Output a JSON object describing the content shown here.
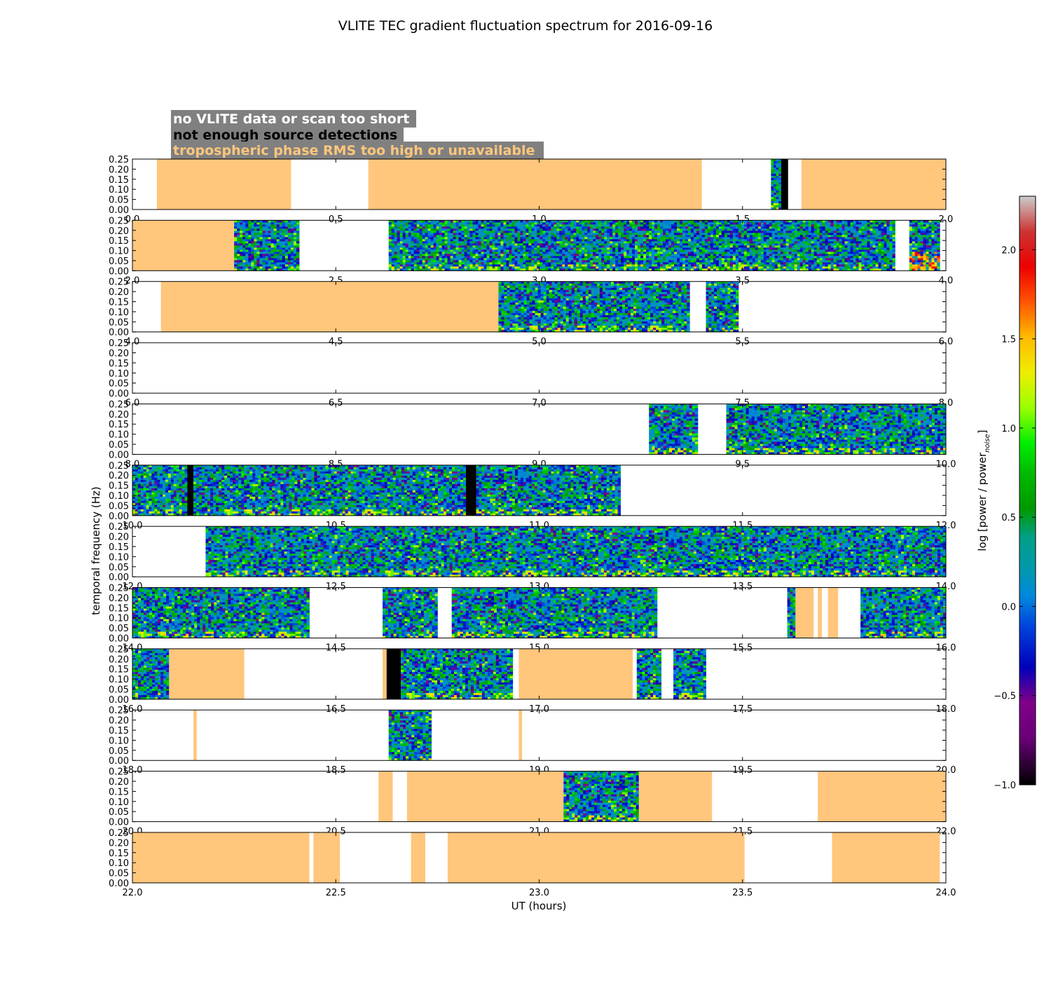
{
  "chart_data": {
    "type": "heatmap",
    "title": "VLITE TEC gradient fluctuation spectrum for 2016-09-16",
    "xlabel": "UT (hours)",
    "ylabel": "temporal frequency (Hz)",
    "ylim": [
      0.0,
      0.25
    ],
    "y_ticks": [
      "0.00",
      "0.05",
      "0.10",
      "0.15",
      "0.20",
      "0.25"
    ],
    "colorbar": {
      "label_main": "log [power / power",
      "label_sub": "noise",
      "label_close": "]",
      "range": [
        -1.0,
        2.3
      ],
      "ticks": [
        "-1.0",
        "-0.5",
        "0.0",
        "0.5",
        "1.0",
        "1.5",
        "2.0"
      ],
      "colormap": "nipy_spectral"
    },
    "legend": [
      {
        "label": "no VLITE data or scan too short",
        "color": "#ffffff",
        "background": "#808080"
      },
      {
        "label": "not enough source detections",
        "color": "#000000",
        "background": "#808080"
      },
      {
        "label": "tropospheric phase RMS too high or unavailable",
        "color": "#ffc67c",
        "background": "#808080"
      }
    ],
    "category_colors": {
      "no_data": "#ffffff",
      "no_detections": "#000000",
      "tropo_rms": "#ffc67c"
    },
    "panels": [
      {
        "range": [
          0.0,
          2.0
        ],
        "ticks": [
          "0.0",
          "0.5",
          "1.0",
          "1.5",
          "2.0"
        ],
        "segments": [
          {
            "t0": 0.06,
            "t1": 0.39,
            "kind": "tropo"
          },
          {
            "t0": 0.58,
            "t1": 1.4,
            "kind": "tropo"
          },
          {
            "t0": 1.57,
            "t1": 1.595,
            "kind": "data"
          },
          {
            "t0": 1.595,
            "t1": 1.612,
            "kind": "black"
          },
          {
            "t0": 1.645,
            "t1": 2.0,
            "kind": "tropo"
          }
        ]
      },
      {
        "range": [
          2.0,
          4.0
        ],
        "ticks": [
          "2.0",
          "2.5",
          "3.0",
          "3.5",
          "4.0"
        ],
        "segments": [
          {
            "t0": 2.0,
            "t1": 2.25,
            "kind": "tropo"
          },
          {
            "t0": 2.25,
            "t1": 2.41,
            "kind": "data"
          },
          {
            "t0": 2.63,
            "t1": 3.875,
            "kind": "data"
          },
          {
            "t0": 3.91,
            "t1": 3.985,
            "kind": "data",
            "hot": true
          }
        ]
      },
      {
        "range": [
          4.0,
          6.0
        ],
        "ticks": [
          "4.0",
          "4.5",
          "5.0",
          "5.5",
          "6.0"
        ],
        "segments": [
          {
            "t0": 4.07,
            "t1": 4.9,
            "kind": "tropo"
          },
          {
            "t0": 4.9,
            "t1": 5.37,
            "kind": "data"
          },
          {
            "t0": 5.41,
            "t1": 5.49,
            "kind": "data"
          }
        ]
      },
      {
        "range": [
          6.0,
          8.0
        ],
        "ticks": [
          "6.0",
          "6.5",
          "7.0",
          "7.5",
          "8.0"
        ],
        "segments": []
      },
      {
        "range": [
          8.0,
          10.0
        ],
        "ticks": [
          "8.0",
          "8.5",
          "9.0",
          "9.5",
          "10.0"
        ],
        "segments": [
          {
            "t0": 9.27,
            "t1": 9.39,
            "kind": "data"
          },
          {
            "t0": 9.46,
            "t1": 10.0,
            "kind": "data"
          }
        ]
      },
      {
        "range": [
          10.0,
          12.0
        ],
        "ticks": [
          "10.0",
          "10.5",
          "11.0",
          "11.5",
          "12.0"
        ],
        "segments": [
          {
            "t0": 10.0,
            "t1": 10.135,
            "kind": "data"
          },
          {
            "t0": 10.135,
            "t1": 10.15,
            "kind": "black"
          },
          {
            "t0": 10.15,
            "t1": 10.82,
            "kind": "data"
          },
          {
            "t0": 10.82,
            "t1": 10.845,
            "kind": "black"
          },
          {
            "t0": 10.845,
            "t1": 11.2,
            "kind": "data"
          }
        ]
      },
      {
        "range": [
          12.0,
          14.0
        ],
        "ticks": [
          "12.0",
          "12.5",
          "13.0",
          "13.5",
          "14.0"
        ],
        "segments": [
          {
            "t0": 12.18,
            "t1": 14.0,
            "kind": "data"
          }
        ]
      },
      {
        "range": [
          14.0,
          16.0
        ],
        "ticks": [
          "14.0",
          "14.5",
          "15.0",
          "15.5",
          "16.0"
        ],
        "segments": [
          {
            "t0": 14.0,
            "t1": 14.435,
            "kind": "data"
          },
          {
            "t0": 14.615,
            "t1": 14.75,
            "kind": "data"
          },
          {
            "t0": 14.785,
            "t1": 15.29,
            "kind": "data"
          },
          {
            "t0": 15.61,
            "t1": 15.63,
            "kind": "data"
          },
          {
            "t0": 15.63,
            "t1": 15.675,
            "kind": "tropo"
          },
          {
            "t0": 15.685,
            "t1": 15.695,
            "kind": "tropo"
          },
          {
            "t0": 15.71,
            "t1": 15.735,
            "kind": "tropo"
          },
          {
            "t0": 15.79,
            "t1": 16.0,
            "kind": "data"
          }
        ]
      },
      {
        "range": [
          16.0,
          18.0
        ],
        "ticks": [
          "16.0",
          "16.5",
          "17.0",
          "17.5",
          "18.0"
        ],
        "segments": [
          {
            "t0": 16.0,
            "t1": 16.09,
            "kind": "data"
          },
          {
            "t0": 16.09,
            "t1": 16.275,
            "kind": "tropo"
          },
          {
            "t0": 16.615,
            "t1": 16.625,
            "kind": "tropo"
          },
          {
            "t0": 16.625,
            "t1": 16.66,
            "kind": "black"
          },
          {
            "t0": 16.66,
            "t1": 16.935,
            "kind": "data"
          },
          {
            "t0": 16.95,
            "t1": 17.23,
            "kind": "tropo"
          },
          {
            "t0": 17.24,
            "t1": 17.3,
            "kind": "data"
          },
          {
            "t0": 17.33,
            "t1": 17.41,
            "kind": "data"
          }
        ]
      },
      {
        "range": [
          18.0,
          20.0
        ],
        "ticks": [
          "18.0",
          "18.5",
          "19.0",
          "19.5",
          "20.0"
        ],
        "segments": [
          {
            "t0": 18.15,
            "t1": 18.158,
            "kind": "tropo"
          },
          {
            "t0": 18.63,
            "t1": 18.735,
            "kind": "data"
          },
          {
            "t0": 18.95,
            "t1": 18.958,
            "kind": "tropo"
          }
        ]
      },
      {
        "range": [
          20.0,
          22.0
        ],
        "ticks": [
          "20.0",
          "20.5",
          "21.0",
          "21.5",
          "22.0"
        ],
        "segments": [
          {
            "t0": 20.605,
            "t1": 20.64,
            "kind": "tropo"
          },
          {
            "t0": 20.675,
            "t1": 21.06,
            "kind": "tropo"
          },
          {
            "t0": 21.06,
            "t1": 21.245,
            "kind": "data"
          },
          {
            "t0": 21.245,
            "t1": 21.425,
            "kind": "tropo"
          },
          {
            "t0": 21.685,
            "t1": 22.0,
            "kind": "tropo"
          }
        ]
      },
      {
        "range": [
          22.0,
          24.0
        ],
        "ticks": [
          "22.0",
          "22.5",
          "23.0",
          "23.5",
          "24.0"
        ],
        "segments": [
          {
            "t0": 22.0,
            "t1": 22.435,
            "kind": "tropo"
          },
          {
            "t0": 22.445,
            "t1": 22.51,
            "kind": "tropo"
          },
          {
            "t0": 22.685,
            "t1": 22.72,
            "kind": "tropo"
          },
          {
            "t0": 22.775,
            "t1": 23.505,
            "kind": "tropo"
          },
          {
            "t0": 23.72,
            "t1": 23.985,
            "kind": "tropo"
          }
        ]
      }
    ]
  }
}
